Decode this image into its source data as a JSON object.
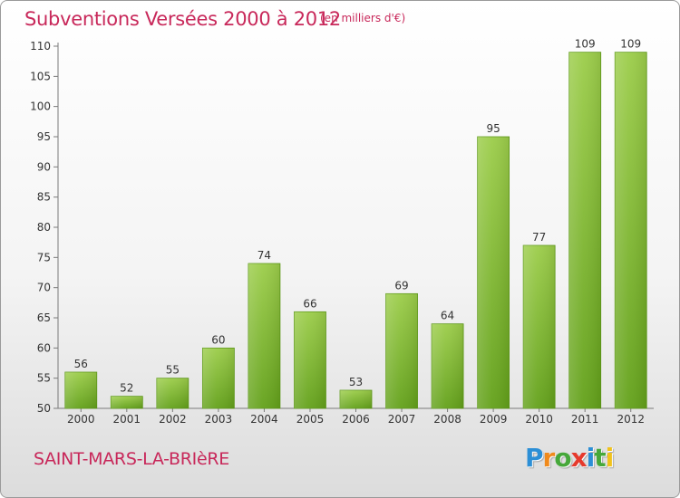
{
  "header": {
    "title": "Subventions Versées 2000 à 2012",
    "subtitle": "(en milliers d'€)"
  },
  "footer": {
    "commune": "SAINT-MARS-LA-BRIèRE",
    "brand_letters": [
      "P",
      "r",
      "o",
      "x",
      "i",
      "t",
      "i"
    ],
    "brand_colors": [
      "#2c8fd6",
      "#f08a1c",
      "#46a83a",
      "#e63a2c",
      "#2c8fd6",
      "#46a83a",
      "#f0c21c"
    ]
  },
  "chart_data": {
    "type": "bar",
    "title": "Subventions Versées 2000 à 2012",
    "subtitle": "(en milliers d'€)",
    "categories": [
      "2000",
      "2001",
      "2002",
      "2003",
      "2004",
      "2005",
      "2006",
      "2007",
      "2008",
      "2009",
      "2010",
      "2011",
      "2012"
    ],
    "values": [
      56,
      52,
      55,
      60,
      74,
      66,
      53,
      69,
      64,
      95,
      77,
      109,
      109
    ],
    "ylim": [
      50,
      110
    ],
    "yticks": [
      50,
      55,
      60,
      65,
      70,
      75,
      80,
      85,
      90,
      95,
      100,
      105,
      110
    ],
    "grid": false,
    "bar_color_top": "#9ccd4a",
    "bar_color_bottom": "#63a11a",
    "xlabel": "",
    "ylabel": ""
  }
}
